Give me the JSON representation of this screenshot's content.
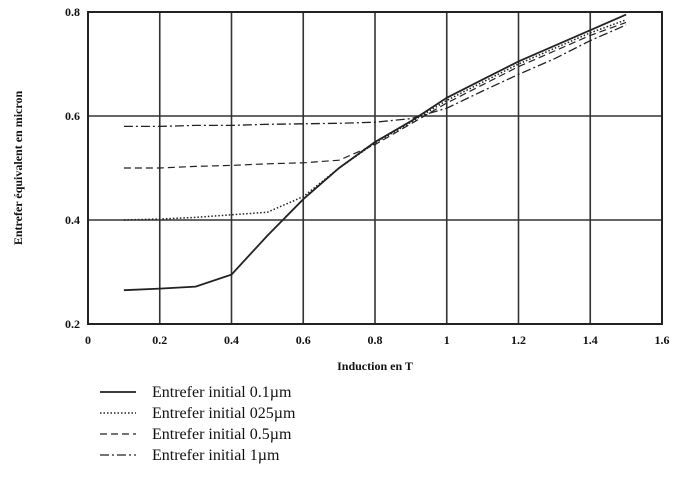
{
  "chart_data": {
    "type": "line",
    "xlabel": "Induction en T",
    "ylabel": "Entrefer équivalent  en micron",
    "xlim": [
      0,
      1.6
    ],
    "ylim": [
      0.2,
      0.8
    ],
    "xticks": [
      "0",
      "0.2",
      "0.4",
      "0.6",
      "0.8",
      "1",
      "1.2",
      "1.4",
      "1.6"
    ],
    "yticks": [
      "0.2",
      "0.4",
      "0.6",
      "0.8"
    ],
    "grid": true,
    "legend_position": "bottom-left, below plot",
    "series": [
      {
        "name": "Entrefer initial 0.1µm",
        "style": "solid",
        "x": [
          0.1,
          0.2,
          0.3,
          0.4,
          0.5,
          0.6,
          0.7,
          0.8,
          0.9,
          1.0,
          1.1,
          1.2,
          1.3,
          1.4,
          1.5
        ],
        "y": [
          0.265,
          0.268,
          0.272,
          0.295,
          0.37,
          0.44,
          0.5,
          0.55,
          0.59,
          0.635,
          0.67,
          0.705,
          0.735,
          0.765,
          0.795
        ]
      },
      {
        "name": "Entrefer initial 025µm",
        "style": "dotted",
        "x": [
          0.1,
          0.2,
          0.3,
          0.4,
          0.5,
          0.6,
          0.7,
          0.8,
          0.9,
          1.0,
          1.1,
          1.2,
          1.3,
          1.4,
          1.5
        ],
        "y": [
          0.4,
          0.402,
          0.405,
          0.41,
          0.415,
          0.445,
          0.5,
          0.548,
          0.588,
          0.63,
          0.665,
          0.7,
          0.73,
          0.76,
          0.785
        ]
      },
      {
        "name": "Entrefer initial 0.5µm",
        "style": "dashed",
        "x": [
          0.1,
          0.2,
          0.3,
          0.4,
          0.5,
          0.6,
          0.7,
          0.8,
          0.9,
          1.0,
          1.1,
          1.2,
          1.3,
          1.4,
          1.5
        ],
        "y": [
          0.5,
          0.5,
          0.503,
          0.505,
          0.508,
          0.51,
          0.515,
          0.545,
          0.585,
          0.625,
          0.66,
          0.695,
          0.725,
          0.755,
          0.78
        ]
      },
      {
        "name": "Entrefer initial 1µm",
        "style": "dashdot",
        "x": [
          0.1,
          0.2,
          0.3,
          0.4,
          0.5,
          0.6,
          0.7,
          0.8,
          0.9,
          1.0,
          1.1,
          1.2,
          1.3,
          1.4,
          1.5
        ],
        "y": [
          0.58,
          0.58,
          0.582,
          0.582,
          0.584,
          0.585,
          0.586,
          0.588,
          0.595,
          0.615,
          0.648,
          0.68,
          0.71,
          0.745,
          0.775
        ]
      }
    ]
  }
}
